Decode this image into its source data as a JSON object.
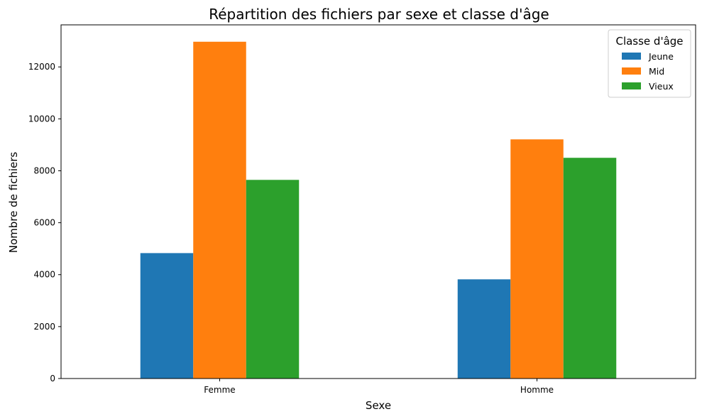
{
  "chart_data": {
    "type": "bar",
    "title": "Répartition des fichiers par sexe et classe d'âge",
    "xlabel": "Sexe",
    "ylabel": "Nombre de fichiers",
    "categories": [
      "Femme",
      "Homme"
    ],
    "series": [
      {
        "name": "Jeune",
        "values": [
          4830,
          3820
        ],
        "color": "#1f77b4"
      },
      {
        "name": "Mid",
        "values": [
          12970,
          9210
        ],
        "color": "#ff7f0e"
      },
      {
        "name": "Vieux",
        "values": [
          7650,
          8500
        ],
        "color": "#2ca02c"
      }
    ],
    "ylim": [
      0,
      13620
    ],
    "yticks": [
      "0",
      "2000",
      "4000",
      "6000",
      "8000",
      "10000",
      "12000"
    ],
    "ytick_values": [
      0,
      2000,
      4000,
      6000,
      8000,
      10000,
      12000
    ],
    "legend": {
      "title": "Classe d'âge",
      "placement": "top-right"
    },
    "grid": false
  }
}
